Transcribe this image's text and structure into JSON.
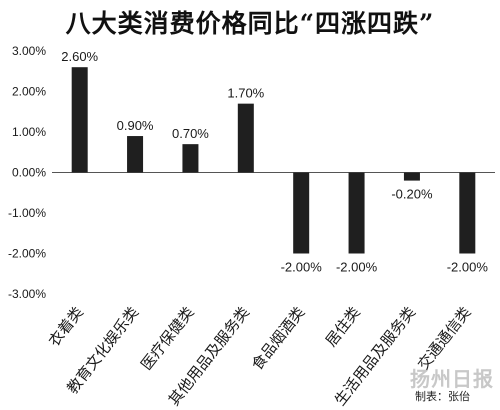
{
  "chart_data": {
    "type": "bar",
    "title": "八大类消费价格同比“四涨四跌”",
    "categories": [
      "衣着类",
      "教育文化娱乐类",
      "医疗保健类",
      "其他用品及服务类",
      "食品烟酒类",
      "居住类",
      "生活用品及服务类",
      "交通通信类"
    ],
    "values": [
      2.6,
      0.9,
      0.7,
      1.7,
      -2.0,
      -2.0,
      -0.2,
      -2.0
    ],
    "data_labels": [
      "2.60%",
      "0.90%",
      "0.70%",
      "1.70%",
      "-2.00%",
      "-2.00%",
      "-0.20%",
      "-2.00%"
    ],
    "ylim": [
      -3,
      3
    ],
    "yticks": [
      3,
      2,
      1,
      0,
      -1,
      -2,
      -3
    ],
    "ytick_labels": [
      "3.00%",
      "2.00%",
      "1.00%",
      "0.00%",
      "-1.00%",
      "-2.00%",
      "-3.00%"
    ],
    "xlabel": "",
    "ylabel": "",
    "grid": false,
    "legend": "none",
    "bar_color": "#1f1f1f"
  },
  "credit": "制表：张佁",
  "watermark": "扬州日报"
}
